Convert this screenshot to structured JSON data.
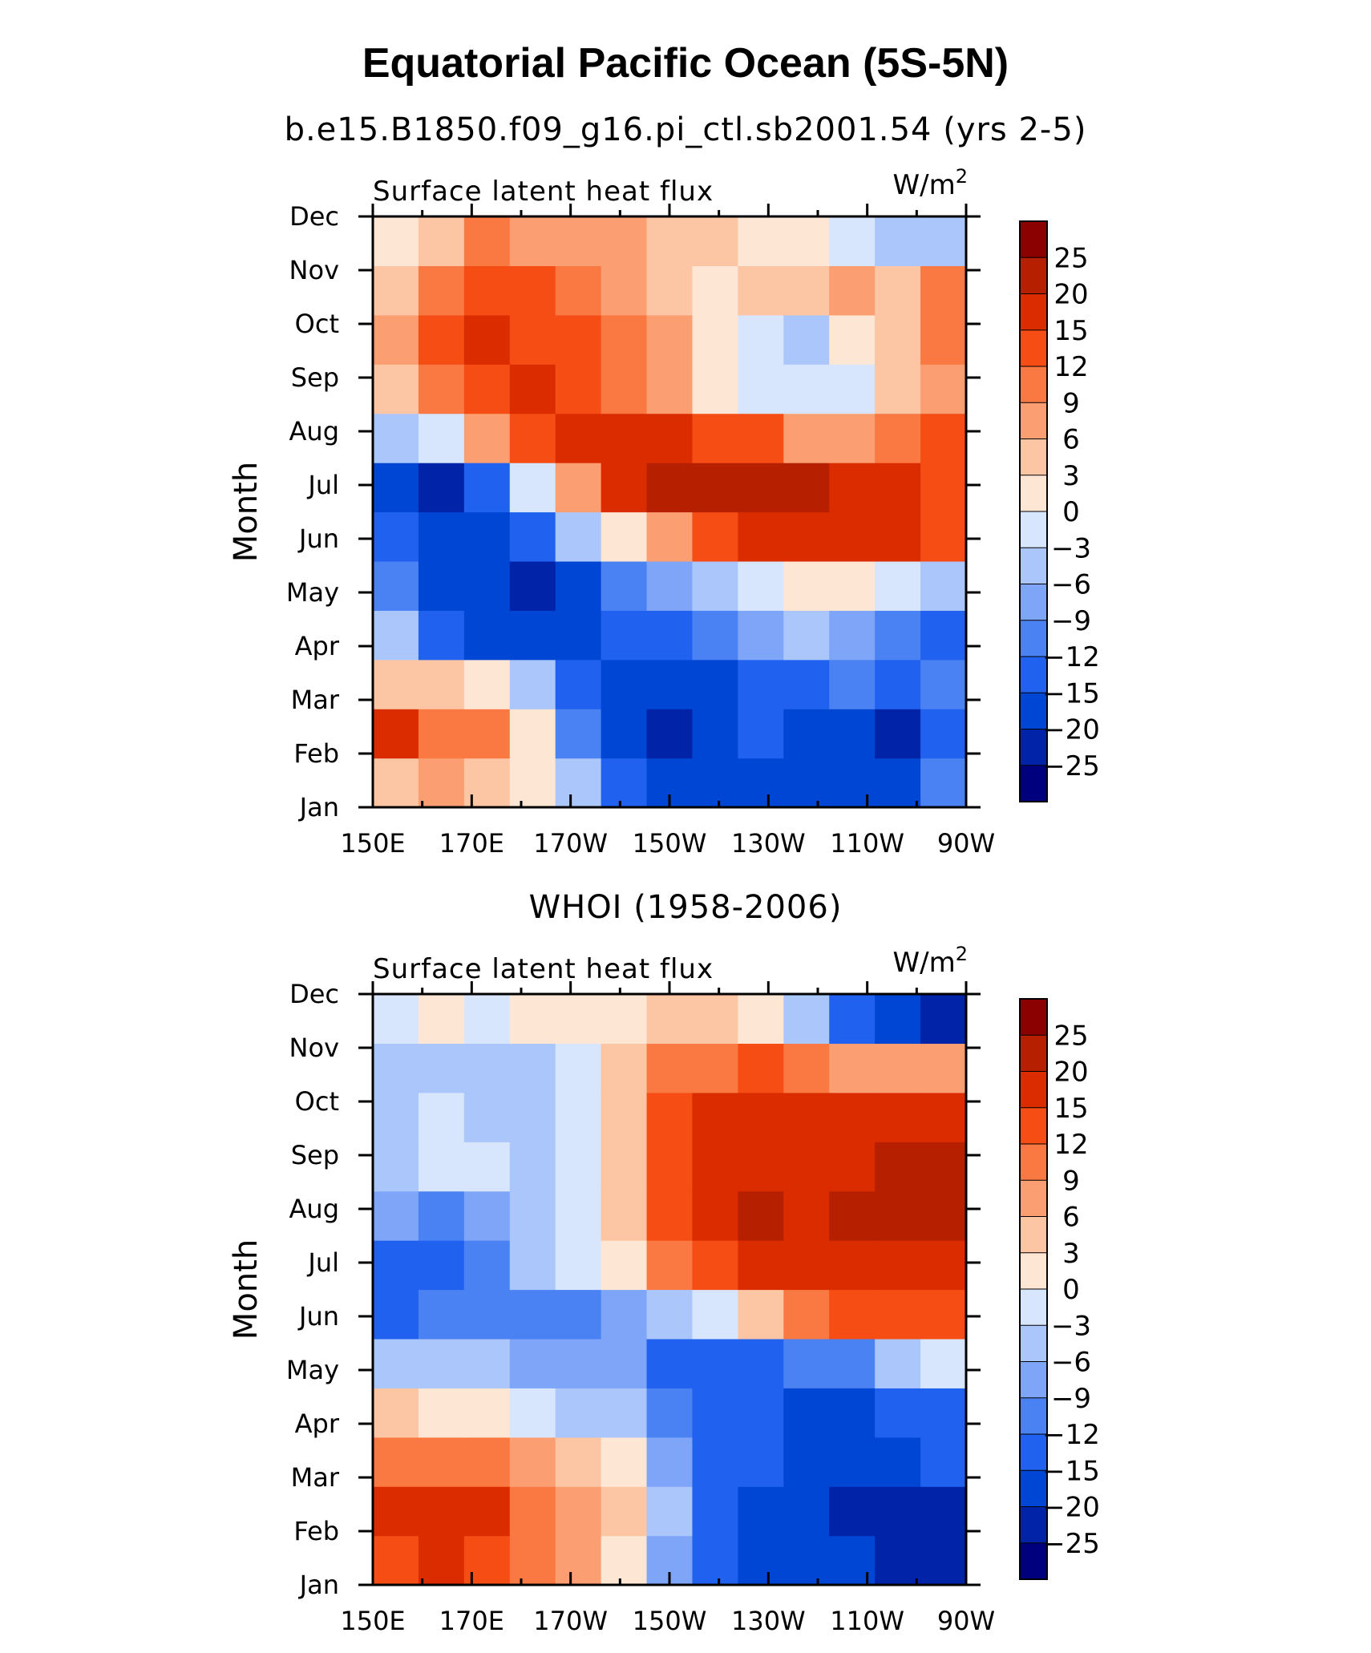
{
  "figure": {
    "title": "Equatorial Pacific Ocean (5S-5N)"
  },
  "chart_data": [
    {
      "type": "heatmap",
      "subtitle": "b.e15.B1850.f09_g16.pi_ctl.sb2001.54 (yrs 2-5)",
      "left_label": "Surface latent heat flux",
      "units_text": "W/m",
      "units_sup": "2",
      "ylabel": "Month",
      "x_ticks": [
        "150E",
        "170E",
        "170W",
        "150W",
        "130W",
        "110W",
        "90W"
      ],
      "y_ticks": [
        "Jan",
        "Feb",
        "Mar",
        "Apr",
        "May",
        "Jun",
        "Jul",
        "Aug",
        "Sep",
        "Oct",
        "Nov",
        "Dec"
      ],
      "levels": [
        -25,
        -20,
        -15,
        -12,
        -9,
        -6,
        -3,
        0,
        3,
        6,
        9,
        12,
        15,
        20,
        25
      ],
      "level_labels": [
        "25",
        "20",
        "15",
        "12",
        "9",
        "6",
        "3",
        "0",
        "−3",
        "−6",
        "−9",
        "−12",
        "−15",
        "−20",
        "−25"
      ],
      "colors": [
        "#00007f",
        "#0023a8",
        "#0046d4",
        "#2062ef",
        "#4a82f3",
        "#7ea5f7",
        "#abc6fa",
        "#d7e6fd",
        "#fde6d3",
        "#fcc5a4",
        "#fb9e71",
        "#fa7842",
        "#f54d14",
        "#db2c00",
        "#b61f00",
        "#8b0000"
      ],
      "x": [
        "150E",
        "160E",
        "170E",
        "180",
        "170W",
        "160W",
        "150W",
        "140W",
        "130W",
        "120W",
        "110W",
        "100W",
        "90W"
      ],
      "y": [
        "Jan",
        "Feb",
        "Mar",
        "Apr",
        "May",
        "Jun",
        "Jul",
        "Aug",
        "Sep",
        "Oct",
        "Nov",
        "Dec"
      ],
      "z": [
        [
          3,
          6,
          4,
          0,
          -6,
          -13,
          -17,
          -18,
          -17,
          -17,
          -18,
          -18,
          -12
        ],
        [
          15,
          10,
          9,
          1,
          -10,
          -18,
          -21,
          -17,
          -15,
          -17,
          -17,
          -21,
          -14
        ],
        [
          5,
          3,
          2,
          -6,
          -14,
          -16,
          -18,
          -16,
          -15,
          -13,
          -11,
          -14,
          -12
        ],
        [
          -6,
          -13,
          -19,
          -20,
          -18,
          -15,
          -14,
          -11,
          -9,
          -6,
          -7,
          -12,
          -14
        ],
        [
          -10,
          -16,
          -20,
          -22,
          -17,
          -11,
          -8,
          -6,
          -3,
          0,
          0,
          -1,
          -6
        ],
        [
          -14,
          -18,
          -19,
          -15,
          -6,
          2,
          8,
          12,
          15,
          18,
          17,
          15,
          12
        ],
        [
          -19,
          -22,
          -14,
          -3,
          8,
          16,
          20,
          20,
          22,
          22,
          17,
          18,
          14
        ],
        [
          -5,
          -1,
          6,
          13,
          18,
          16,
          16,
          14,
          12,
          7,
          8,
          10,
          13
        ],
        [
          3,
          9,
          14,
          15,
          13,
          11,
          6,
          1,
          -2,
          -3,
          -3,
          3,
          7
        ],
        [
          8,
          14,
          18,
          14,
          12,
          9,
          6,
          1,
          -1,
          -6,
          0,
          3,
          9
        ],
        [
          4,
          11,
          14,
          12,
          9,
          6,
          4,
          0,
          3,
          5,
          7,
          4,
          10
        ],
        [
          2,
          5,
          9,
          8,
          6,
          7,
          5,
          4,
          2,
          0,
          -3,
          -4,
          -4
        ]
      ],
      "colorbar_ticks": [
        "-25",
        "25"
      ]
    },
    {
      "type": "heatmap",
      "subtitle": "WHOI (1958-2006)",
      "left_label": "Surface latent heat flux",
      "units_text": "W/m",
      "units_sup": "2",
      "ylabel": "Month",
      "x_ticks": [
        "150E",
        "170E",
        "170W",
        "150W",
        "130W",
        "110W",
        "90W"
      ],
      "y_ticks": [
        "Jan",
        "Feb",
        "Mar",
        "Apr",
        "May",
        "Jun",
        "Jul",
        "Aug",
        "Sep",
        "Oct",
        "Nov",
        "Dec"
      ],
      "levels": [
        -25,
        -20,
        -15,
        -12,
        -9,
        -6,
        -3,
        0,
        3,
        6,
        9,
        12,
        15,
        20,
        25
      ],
      "level_labels": [
        "25",
        "20",
        "15",
        "12",
        "9",
        "6",
        "3",
        "0",
        "−3",
        "−6",
        "−9",
        "−12",
        "−15",
        "−20",
        "−25"
      ],
      "colors": [
        "#00007f",
        "#0023a8",
        "#0046d4",
        "#2062ef",
        "#4a82f3",
        "#7ea5f7",
        "#abc6fa",
        "#d7e6fd",
        "#fde6d3",
        "#fcc5a4",
        "#fb9e71",
        "#fa7842",
        "#f54d14",
        "#db2c00",
        "#b61f00",
        "#8b0000"
      ],
      "x": [
        "150E",
        "160E",
        "170E",
        "180",
        "170W",
        "160W",
        "150W",
        "140W",
        "130W",
        "120W",
        "110W",
        "100W",
        "90W"
      ],
      "y": [
        "Jan",
        "Feb",
        "Mar",
        "Apr",
        "May",
        "Jun",
        "Jul",
        "Aug",
        "Sep",
        "Oct",
        "Nov",
        "Dec"
      ],
      "z": [
        [
          14,
          16,
          13,
          9,
          6,
          2,
          -8,
          -14,
          -16,
          -17,
          -20,
          -22,
          -24
        ],
        [
          15,
          17,
          16,
          11,
          7,
          3,
          -6,
          -13,
          -16,
          -19,
          -21,
          -22,
          -21
        ],
        [
          11,
          10,
          9,
          6,
          4,
          0,
          -7,
          -13,
          -15,
          -16,
          -17,
          -16,
          -15
        ],
        [
          3,
          1,
          0,
          -2,
          -5,
          -6,
          -10,
          -15,
          -15,
          -16,
          -16,
          -15,
          -14
        ],
        [
          -5,
          -5,
          -6,
          -7,
          -8,
          -9,
          -13,
          -15,
          -13,
          -11,
          -10,
          -6,
          -1
        ],
        [
          -13,
          -11,
          -12,
          -12,
          -11,
          -9,
          -6,
          -1,
          5,
          10,
          13,
          13,
          12
        ],
        [
          -13,
          -15,
          -12,
          -6,
          -1,
          2,
          9,
          14,
          17,
          18,
          18,
          17,
          17
        ],
        [
          -8,
          -10,
          -8,
          -5,
          -1,
          5,
          13,
          17,
          21,
          19,
          20,
          22,
          22
        ],
        [
          -5,
          -3,
          -3,
          -4,
          -1,
          3,
          14,
          17,
          19,
          18,
          19,
          22,
          24
        ],
        [
          -4,
          -2,
          -4,
          -5,
          -2,
          3,
          12,
          15,
          15,
          16,
          18,
          19,
          19
        ],
        [
          -5,
          -4,
          -6,
          -4,
          -3,
          3,
          9,
          11,
          12,
          10,
          8,
          8,
          8
        ],
        [
          -1,
          0,
          -1,
          0,
          1,
          2,
          3,
          4,
          0,
          -6,
          -14,
          -18,
          -22
        ]
      ],
      "colorbar_ticks": [
        "-25",
        "25"
      ]
    }
  ]
}
